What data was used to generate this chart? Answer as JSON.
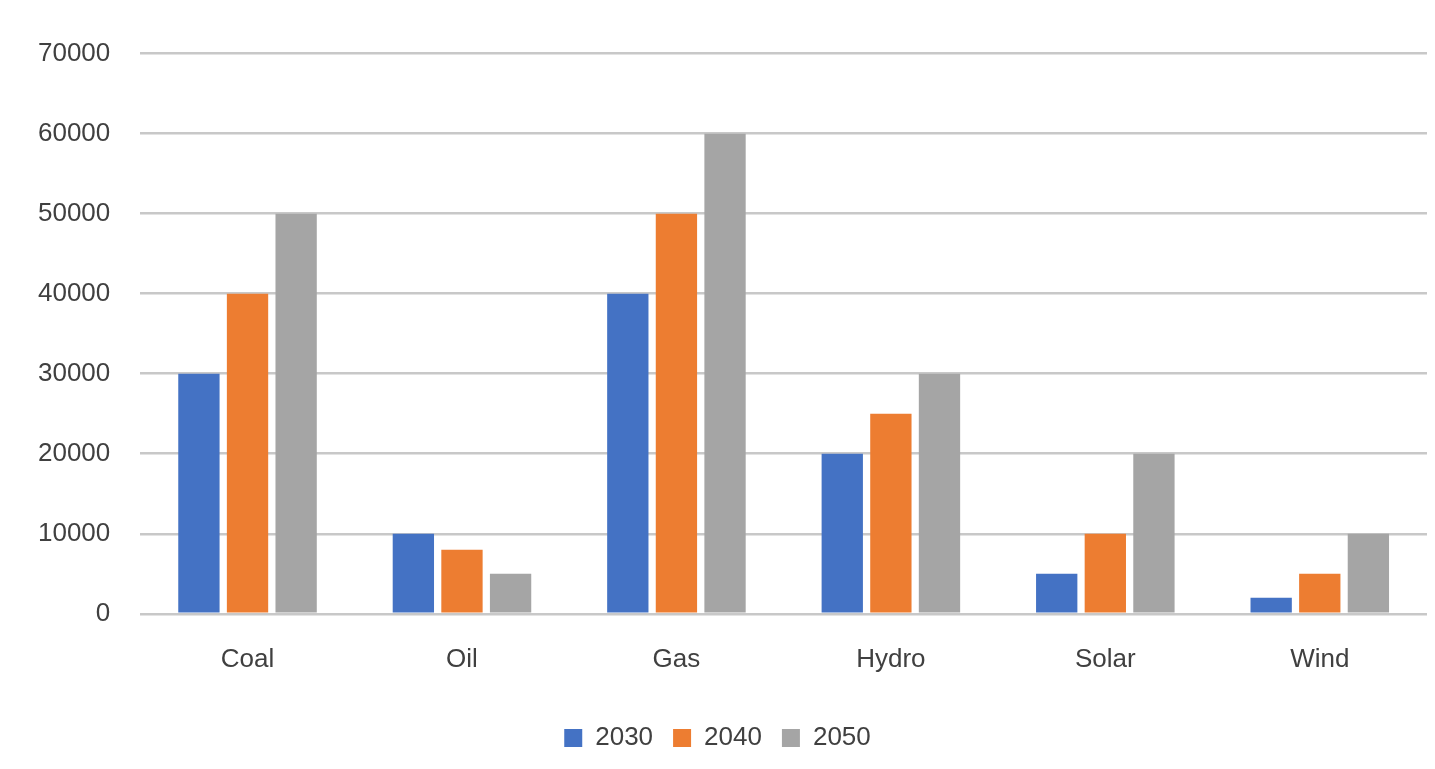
{
  "chart_data": {
    "type": "bar",
    "categories": [
      "Coal",
      "Oil",
      "Gas",
      "Hydro",
      "Solar",
      "Wind"
    ],
    "series": [
      {
        "name": "2030",
        "color": "#4472c4",
        "values": [
          30000,
          10000,
          40000,
          20000,
          5000,
          2000
        ]
      },
      {
        "name": "2040",
        "color": "#ed7d31",
        "values": [
          40000,
          8000,
          50000,
          25000,
          10000,
          5000
        ]
      },
      {
        "name": "2050",
        "color": "#a5a5a5",
        "values": [
          50000,
          5000,
          60000,
          30000,
          20000,
          10000
        ]
      }
    ],
    "ylim": [
      0,
      70000
    ],
    "yticks": [
      0,
      10000,
      20000,
      30000,
      40000,
      50000,
      60000,
      70000
    ],
    "grid": "y",
    "legend": "bottom"
  }
}
